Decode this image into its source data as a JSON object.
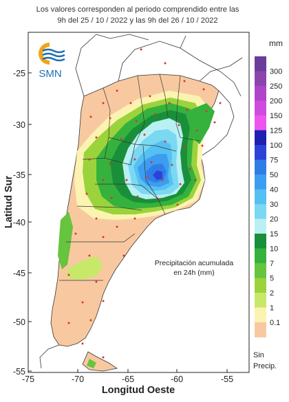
{
  "header": {
    "line1": "Los valores corresponden al periodo comprendido entre las",
    "line2": "9h del 25 / 10 / 2022  y las 9h del 26 / 10 / 2022"
  },
  "logo": {
    "text": "SMN",
    "colors": {
      "sun": "#f2a418",
      "wave": "#1b6fb5"
    }
  },
  "axes": {
    "xlabel": "Longitud Oeste",
    "ylabel": "Latitud Sur",
    "xticks": [
      "-75",
      "-70",
      "-65",
      "-60",
      "-55"
    ],
    "yticks": [
      "-25",
      "-30",
      "-35",
      "-40",
      "-45",
      "-50",
      "-55"
    ],
    "lon_range": [
      -75,
      -52
    ],
    "lat_range": [
      -55.5,
      -21.5
    ]
  },
  "annotation": {
    "line1": "Precipitación acumulada",
    "line2": "en 24h (mm)"
  },
  "legend": {
    "unit": "mm",
    "no_precip_line1": "Sin",
    "no_precip_line2": "Precip.",
    "levels": [
      {
        "label": "300",
        "color": "#6a3d9a"
      },
      {
        "label": "250",
        "color": "#8e44ad"
      },
      {
        "label": "200",
        "color": "#b044c8"
      },
      {
        "label": "150",
        "color": "#d04ae0"
      },
      {
        "label": "125",
        "color": "#ee55ee"
      },
      {
        "label": "100",
        "color": "#1f1fb0"
      },
      {
        "label": "75",
        "color": "#2c43d8"
      },
      {
        "label": "50",
        "color": "#2f7ee8"
      },
      {
        "label": "40",
        "color": "#3d9df0"
      },
      {
        "label": "30",
        "color": "#55c0f2"
      },
      {
        "label": "20",
        "color": "#7ad8f2"
      },
      {
        "label": "15",
        "color": "#b8f0f4"
      },
      {
        "label": "10",
        "color": "#1a8f3a"
      },
      {
        "label": "7",
        "color": "#35b23e"
      },
      {
        "label": "5",
        "color": "#66c43e"
      },
      {
        "label": "2",
        "color": "#9bd33c"
      },
      {
        "label": "1",
        "color": "#c8e86a"
      },
      {
        "label": "0.1",
        "color": "#fbf3b0"
      },
      {
        "label": "",
        "color": "#f8c9a0"
      }
    ]
  },
  "colors": {
    "dot": "#e0322a",
    "border": "#333333",
    "land": "#ffffff",
    "frame": "#222222"
  }
}
